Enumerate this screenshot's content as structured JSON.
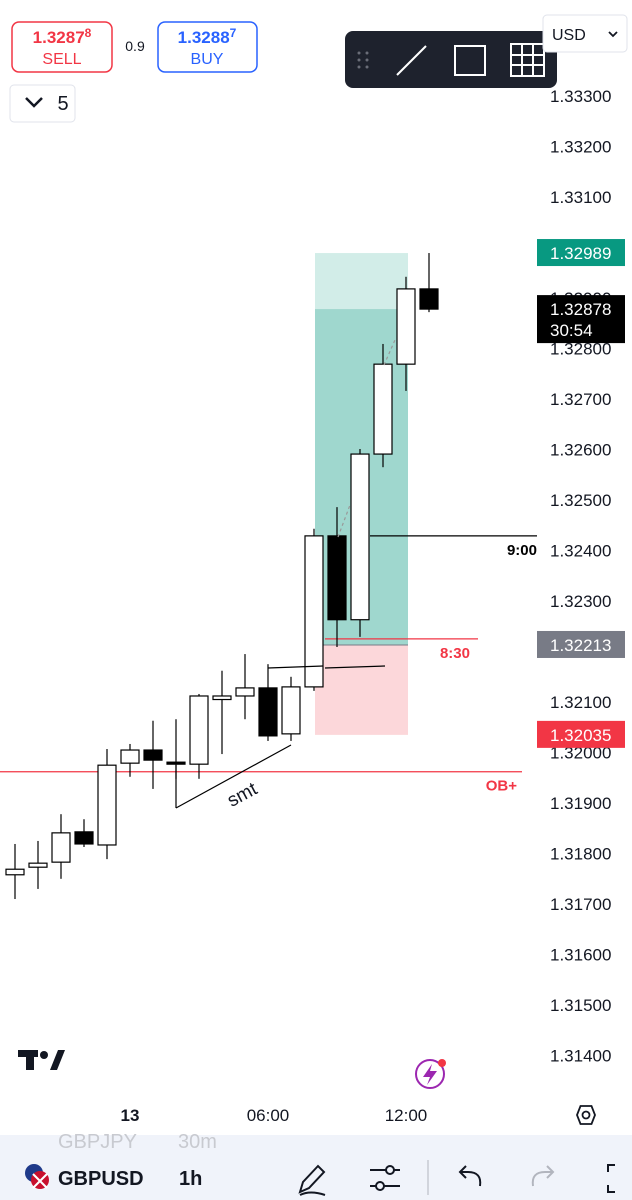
{
  "header": {
    "sell": {
      "price": "1.3287",
      "pip": "8",
      "label": "SELL"
    },
    "spread": "0.9",
    "buy": {
      "price": "1.3288",
      "pip": "7",
      "label": "BUY"
    },
    "currency": "USD",
    "interval_count": "5"
  },
  "chart_data": {
    "type": "candlestick",
    "categories": [
      null,
      null,
      null,
      null,
      null,
      "13",
      null,
      null,
      null,
      null,
      null,
      "06:00",
      null,
      null,
      null,
      null,
      null,
      "12:00",
      null
    ],
    "series": {
      "open": [
        1.31758,
        1.31773,
        1.31783,
        1.31843,
        1.31817,
        1.31979,
        1.32005,
        1.31981,
        1.31977,
        1.32105,
        1.32112,
        1.32128,
        1.32037,
        1.3213,
        1.32429,
        1.32263,
        1.32591,
        1.32769,
        1.32918
      ],
      "high": [
        1.31819,
        1.31825,
        1.31878,
        1.31868,
        1.32007,
        1.32017,
        1.32063,
        1.32066,
        1.32116,
        1.32162,
        1.32195,
        1.32175,
        1.3215,
        1.32443,
        1.32486,
        1.32601,
        1.32809,
        1.32942,
        1.32989
      ],
      "low": [
        1.3171,
        1.3173,
        1.3175,
        1.31813,
        1.31789,
        1.31952,
        1.31928,
        1.31948,
        1.31948,
        1.31997,
        1.32066,
        1.32023,
        1.32023,
        1.32122,
        1.32209,
        1.32229,
        1.32565,
        1.32716,
        1.32872
      ],
      "close": [
        1.31769,
        1.31781,
        1.31841,
        1.31819,
        1.31975,
        1.32005,
        1.31985,
        1.31977,
        1.32112,
        1.32112,
        1.32128,
        1.32033,
        1.3213,
        1.32429,
        1.32263,
        1.32591,
        1.32769,
        1.32918,
        1.32878
      ]
    },
    "up_color": "#ffffff",
    "down_color": "#000000",
    "ylim": [
      1.3132,
      1.3349
    ],
    "yticks": [
      {
        "value": 1.314,
        "label": "1.31400"
      },
      {
        "value": 1.315,
        "label": "1.31500"
      },
      {
        "value": 1.316,
        "label": "1.31600"
      },
      {
        "value": 1.317,
        "label": "1.31700"
      },
      {
        "value": 1.318,
        "label": "1.31800"
      },
      {
        "value": 1.319,
        "label": "1.31900"
      },
      {
        "value": 1.32,
        "label": "1.32000"
      },
      {
        "value": 1.321,
        "label": "1.32100"
      },
      {
        "value": 1.322,
        "label": "1.32200"
      },
      {
        "value": 1.323,
        "label": "1.32300"
      },
      {
        "value": 1.324,
        "label": "1.32400"
      },
      {
        "value": 1.325,
        "label": "1.32500"
      },
      {
        "value": 1.326,
        "label": "1.32600"
      },
      {
        "value": 1.327,
        "label": "1.32700"
      },
      {
        "value": 1.328,
        "label": "1.32800"
      },
      {
        "value": 1.329,
        "label": "1.32900"
      },
      {
        "value": 1.33,
        "label": "1.33000"
      },
      {
        "value": 1.331,
        "label": "1.33100"
      },
      {
        "value": 1.332,
        "label": "1.33200"
      },
      {
        "value": 1.333,
        "label": "1.33300"
      }
    ],
    "position": {
      "target": 1.32989,
      "entry": 1.32213,
      "stop": 1.32035
    },
    "levels": [
      {
        "value": 1.32429,
        "label": "9:00",
        "color": "#000000"
      },
      {
        "value": 1.32225,
        "label": "8:30",
        "color": "#f23645"
      },
      {
        "value": 1.31962,
        "label": "OB+",
        "color": "#f23645"
      }
    ],
    "price_badges": [
      {
        "value": 1.32989,
        "color": "#089981"
      },
      {
        "value": 1.32878,
        "color": "#000000",
        "countdown": "30:54"
      },
      {
        "value": 1.32213,
        "color": "#787b86"
      },
      {
        "value": 1.32035,
        "color": "#f23645"
      }
    ],
    "annotations": [
      {
        "text": "smt"
      }
    ]
  },
  "footer": {
    "ghost_symbol": "GBPJPY",
    "ghost_interval": "30m",
    "symbol": "GBPUSD",
    "interval": "1h"
  }
}
